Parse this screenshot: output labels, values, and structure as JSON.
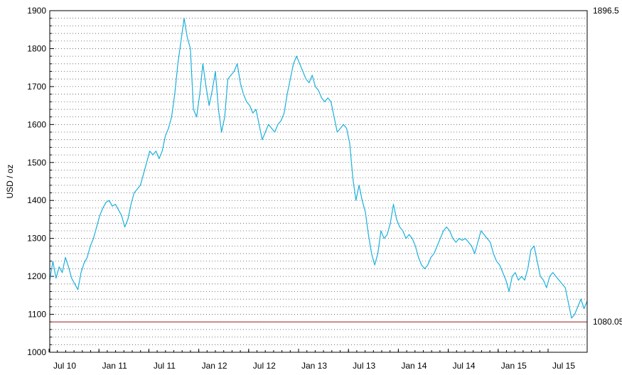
{
  "chart_data": {
    "type": "line",
    "title": "",
    "xlabel": "",
    "ylabel": "USD / oz",
    "ylim": [
      1000,
      1900
    ],
    "y_ticks": [
      1000,
      1100,
      1200,
      1300,
      1400,
      1500,
      1600,
      1700,
      1800,
      1900
    ],
    "x_tick_labels": [
      "Jul 10",
      "Jan 11",
      "Jul 11",
      "Jan 12",
      "Jul 12",
      "Jan 13",
      "Jul 13",
      "Jan 14",
      "Jul 14",
      "Jan 15",
      "Jul 15"
    ],
    "grid": true,
    "legend": "none",
    "colors": {
      "line": "#1ab0dc",
      "reference_line": "#a02020",
      "grid": "#555555",
      "frame": "#000000"
    },
    "reference_line": {
      "value": 1080.05,
      "label": "1080.05"
    },
    "max_label": {
      "value": 1896.5,
      "label": "1896.5"
    },
    "series": [
      {
        "name": "",
        "values": [
          [
            0,
            1190
          ],
          [
            1,
            1240
          ],
          [
            2,
            1195
          ],
          [
            3,
            1225
          ],
          [
            4,
            1210
          ],
          [
            5,
            1250
          ],
          [
            6,
            1225
          ],
          [
            7,
            1195
          ],
          [
            8,
            1180
          ],
          [
            9,
            1165
          ],
          [
            10,
            1210
          ],
          [
            11,
            1235
          ],
          [
            12,
            1250
          ],
          [
            13,
            1280
          ],
          [
            14,
            1300
          ],
          [
            15,
            1330
          ],
          [
            16,
            1360
          ],
          [
            17,
            1380
          ],
          [
            18,
            1395
          ],
          [
            19,
            1400
          ],
          [
            20,
            1385
          ],
          [
            21,
            1390
          ],
          [
            22,
            1375
          ],
          [
            23,
            1360
          ],
          [
            24,
            1330
          ],
          [
            25,
            1350
          ],
          [
            26,
            1390
          ],
          [
            27,
            1420
          ],
          [
            28,
            1430
          ],
          [
            29,
            1440
          ],
          [
            30,
            1470
          ],
          [
            31,
            1500
          ],
          [
            32,
            1530
          ],
          [
            33,
            1520
          ],
          [
            34,
            1530
          ],
          [
            35,
            1510
          ],
          [
            36,
            1530
          ],
          [
            37,
            1570
          ],
          [
            38,
            1590
          ],
          [
            39,
            1620
          ],
          [
            40,
            1680
          ],
          [
            41,
            1760
          ],
          [
            42,
            1820
          ],
          [
            43,
            1880
          ],
          [
            44,
            1830
          ],
          [
            45,
            1800
          ],
          [
            46,
            1640
          ],
          [
            47,
            1620
          ],
          [
            48,
            1680
          ],
          [
            49,
            1760
          ],
          [
            50,
            1700
          ],
          [
            51,
            1650
          ],
          [
            52,
            1690
          ],
          [
            53,
            1740
          ],
          [
            54,
            1640
          ],
          [
            55,
            1580
          ],
          [
            56,
            1620
          ],
          [
            57,
            1720
          ],
          [
            58,
            1730
          ],
          [
            59,
            1740
          ],
          [
            60,
            1760
          ],
          [
            61,
            1710
          ],
          [
            62,
            1680
          ],
          [
            63,
            1660
          ],
          [
            64,
            1650
          ],
          [
            65,
            1630
          ],
          [
            66,
            1640
          ],
          [
            67,
            1600
          ],
          [
            68,
            1560
          ],
          [
            69,
            1580
          ],
          [
            70,
            1600
          ],
          [
            71,
            1590
          ],
          [
            72,
            1580
          ],
          [
            73,
            1600
          ],
          [
            74,
            1610
          ],
          [
            75,
            1630
          ],
          [
            76,
            1680
          ],
          [
            77,
            1720
          ],
          [
            78,
            1760
          ],
          [
            79,
            1780
          ],
          [
            80,
            1760
          ],
          [
            81,
            1740
          ],
          [
            82,
            1720
          ],
          [
            83,
            1710
          ],
          [
            84,
            1730
          ],
          [
            85,
            1700
          ],
          [
            86,
            1690
          ],
          [
            87,
            1670
          ],
          [
            88,
            1660
          ],
          [
            89,
            1670
          ],
          [
            90,
            1660
          ],
          [
            91,
            1620
          ],
          [
            92,
            1580
          ],
          [
            93,
            1590
          ],
          [
            94,
            1600
          ],
          [
            95,
            1590
          ],
          [
            96,
            1550
          ],
          [
            97,
            1460
          ],
          [
            98,
            1400
          ],
          [
            99,
            1440
          ],
          [
            100,
            1400
          ],
          [
            101,
            1370
          ],
          [
            102,
            1310
          ],
          [
            103,
            1260
          ],
          [
            104,
            1230
          ],
          [
            105,
            1260
          ],
          [
            106,
            1320
          ],
          [
            107,
            1300
          ],
          [
            108,
            1310
          ],
          [
            109,
            1340
          ],
          [
            110,
            1390
          ],
          [
            111,
            1350
          ],
          [
            112,
            1330
          ],
          [
            113,
            1320
          ],
          [
            114,
            1300
          ],
          [
            115,
            1310
          ],
          [
            116,
            1300
          ],
          [
            117,
            1280
          ],
          [
            118,
            1250
          ],
          [
            119,
            1230
          ],
          [
            120,
            1220
          ],
          [
            121,
            1230
          ],
          [
            122,
            1250
          ],
          [
            123,
            1260
          ],
          [
            124,
            1280
          ],
          [
            125,
            1300
          ],
          [
            126,
            1320
          ],
          [
            127,
            1330
          ],
          [
            128,
            1320
          ],
          [
            129,
            1300
          ],
          [
            130,
            1290
          ],
          [
            131,
            1300
          ],
          [
            132,
            1295
          ],
          [
            133,
            1300
          ],
          [
            134,
            1290
          ],
          [
            135,
            1280
          ],
          [
            136,
            1260
          ],
          [
            137,
            1290
          ],
          [
            138,
            1320
          ],
          [
            139,
            1310
          ],
          [
            140,
            1300
          ],
          [
            141,
            1290
          ],
          [
            142,
            1260
          ],
          [
            143,
            1240
          ],
          [
            144,
            1230
          ],
          [
            145,
            1210
          ],
          [
            146,
            1190
          ],
          [
            147,
            1160
          ],
          [
            148,
            1200
          ],
          [
            149,
            1210
          ],
          [
            150,
            1190
          ],
          [
            151,
            1200
          ],
          [
            152,
            1190
          ],
          [
            153,
            1220
          ],
          [
            154,
            1270
          ],
          [
            155,
            1280
          ],
          [
            156,
            1240
          ],
          [
            157,
            1200
          ],
          [
            158,
            1190
          ],
          [
            159,
            1170
          ],
          [
            160,
            1200
          ],
          [
            161,
            1210
          ],
          [
            162,
            1200
          ],
          [
            163,
            1190
          ],
          [
            164,
            1180
          ],
          [
            165,
            1170
          ],
          [
            166,
            1130
          ],
          [
            167,
            1090
          ],
          [
            168,
            1100
          ],
          [
            169,
            1120
          ],
          [
            170,
            1140
          ],
          [
            171,
            1115
          ],
          [
            172,
            1135
          ]
        ]
      }
    ]
  }
}
